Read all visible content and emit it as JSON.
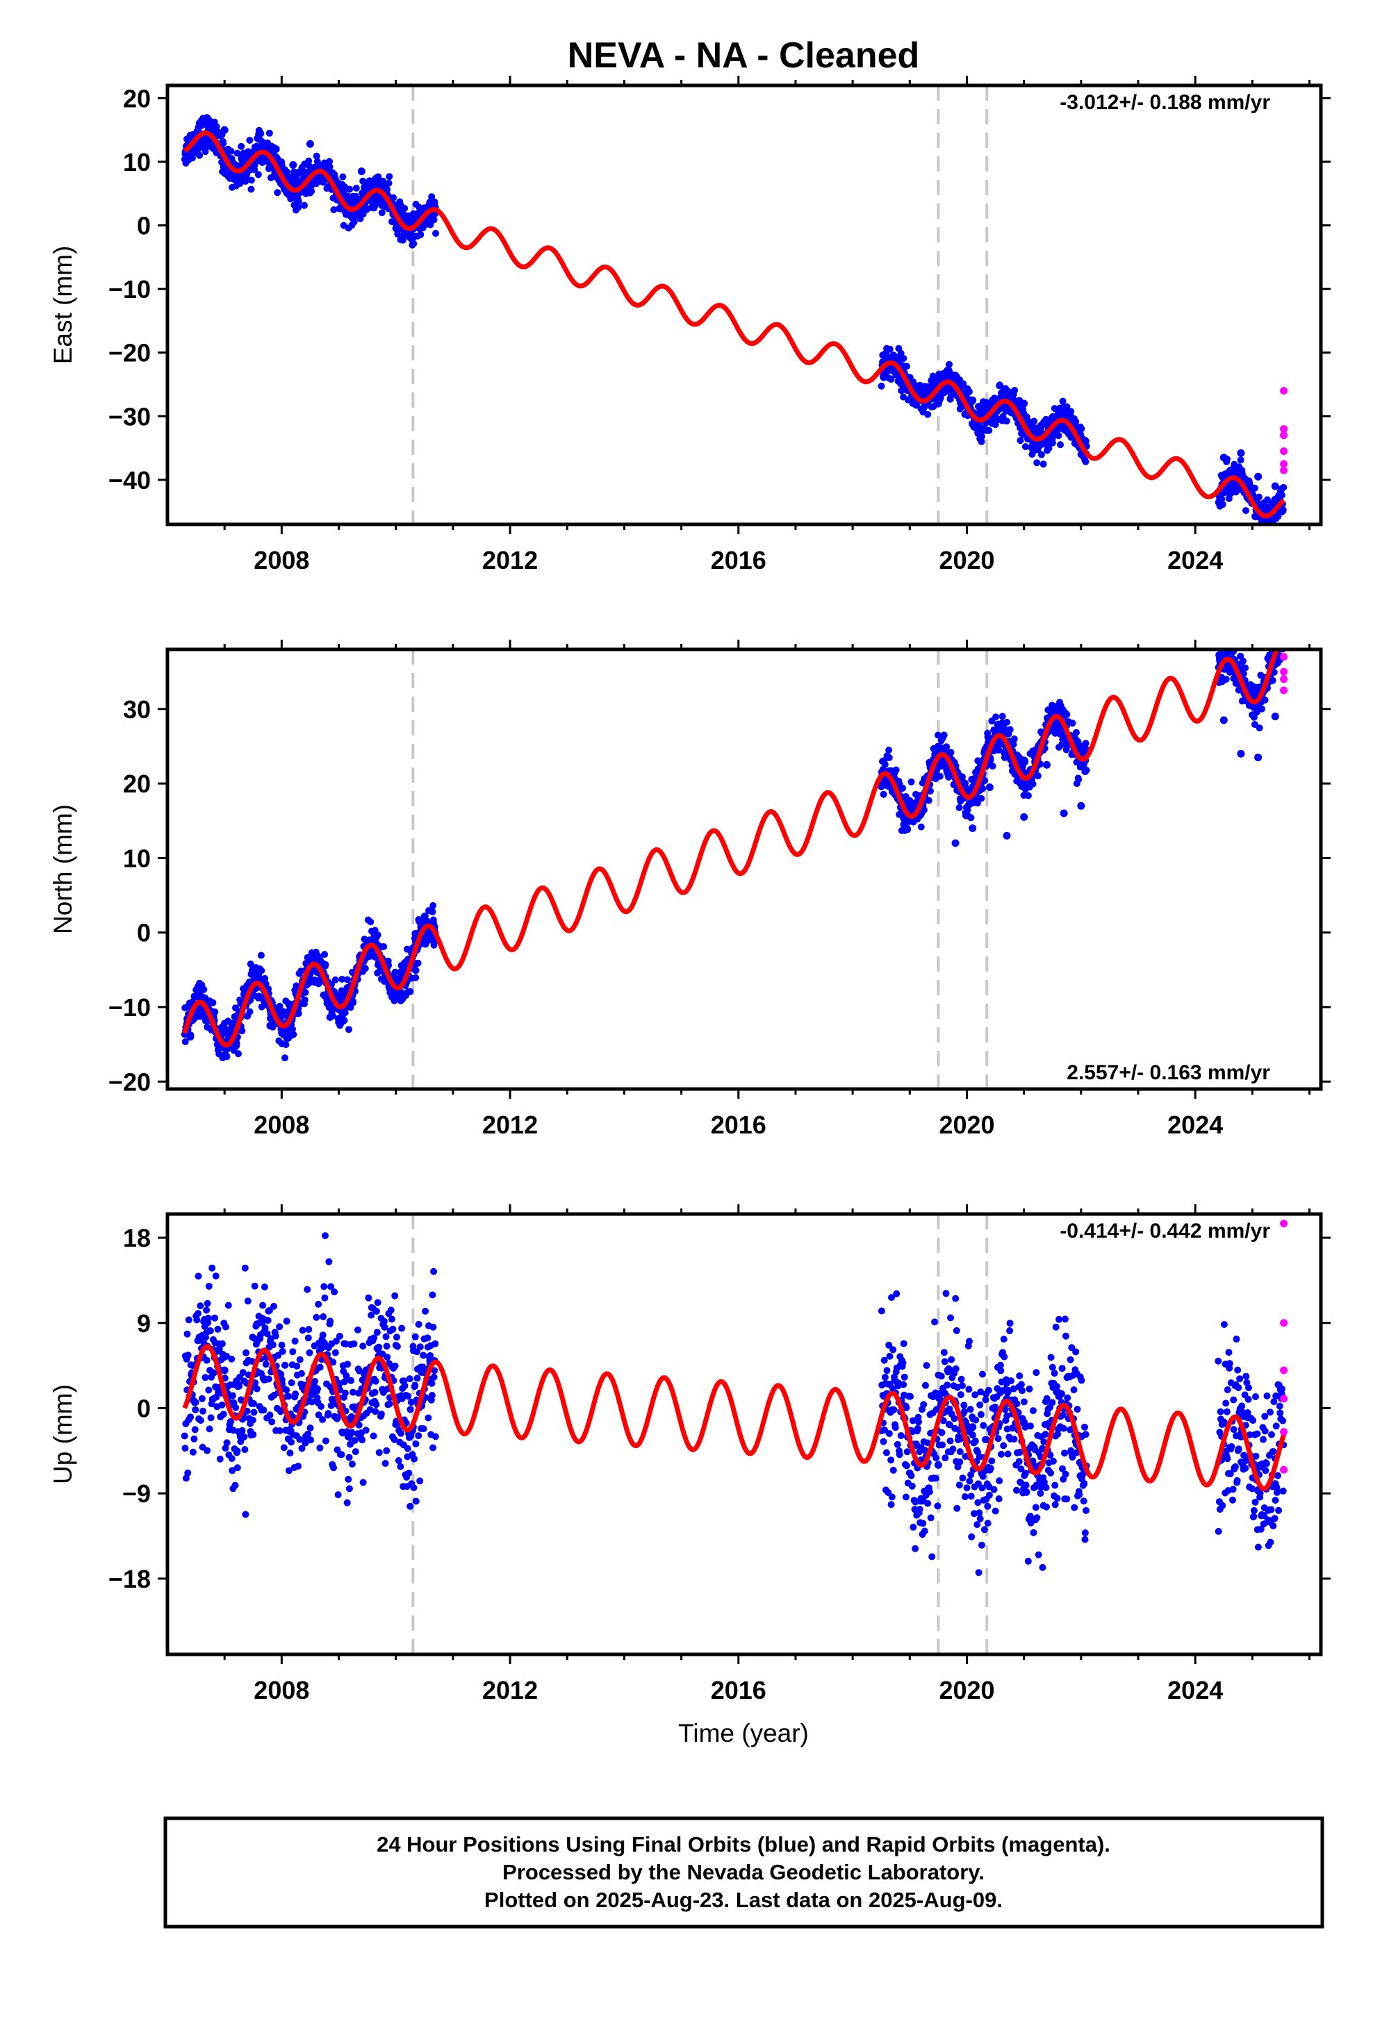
{
  "title": "NEVA  - NA - Cleaned",
  "xlabel": "Time (year)",
  "footer": {
    "lines": [
      "24 Hour Positions Using Final Orbits (blue) and Rapid Orbits (magenta).",
      "Processed by the Nevada Geodetic Laboratory.",
      "Plotted on 2025-Aug-23. Last data on 2025-Aug-09."
    ]
  },
  "colors": {
    "final": "#0000ff",
    "rapid": "#ff00ff",
    "model": "#ff0000",
    "event_line": "#c8c8c8"
  },
  "chart_data": [
    {
      "type": "scatter",
      "component": "east",
      "ylabel": "East (mm)",
      "rate_label": "-3.012+/- 0.188 mm/yr",
      "rate_position": "top-right",
      "xlim": [
        2006.0,
        2026.2
      ],
      "xticks": [
        2008,
        2012,
        2016,
        2020,
        2024
      ],
      "ylim": [
        -47,
        22
      ],
      "yticks": [
        20,
        10,
        0,
        -10,
        -20,
        -30,
        -40
      ],
      "event_lines": [
        2010.3,
        2019.5,
        2020.35
      ],
      "data_segments": [
        [
          2006.3,
          2010.7
        ],
        [
          2018.5,
          2022.1
        ],
        [
          2024.4,
          2025.55
        ]
      ],
      "model": {
        "rate": -3.012,
        "value_at_2006_3": 13.5,
        "annual_amplitude": 2.2,
        "annual_peak_year": 2006.7
      },
      "final_orbit_points": [
        [
          2006.4,
          13.2
        ],
        [
          2006.7,
          16.8
        ],
        [
          2007.0,
          15.0
        ],
        [
          2007.3,
          10.5
        ],
        [
          2007.6,
          13.6
        ],
        [
          2007.9,
          12.0
        ],
        [
          2008.2,
          9.5
        ],
        [
          2008.5,
          12.8
        ],
        [
          2008.8,
          9.6
        ],
        [
          2009.1,
          6.0
        ],
        [
          2009.4,
          8.5
        ],
        [
          2009.7,
          6.5
        ],
        [
          2010.0,
          3.2
        ],
        [
          2010.3,
          0.5
        ],
        [
          2010.6,
          2.8
        ],
        [
          2018.6,
          -21.8
        ],
        [
          2018.9,
          -23.2
        ],
        [
          2019.2,
          -27.5
        ],
        [
          2019.5,
          -28.0
        ],
        [
          2019.8,
          -25.0
        ],
        [
          2020.1,
          -27.5
        ],
        [
          2020.4,
          -30.2
        ],
        [
          2020.7,
          -26.0
        ],
        [
          2021.0,
          -28.0
        ],
        [
          2021.3,
          -31.5
        ],
        [
          2021.6,
          -30.0
        ],
        [
          2021.9,
          -32.0
        ],
        [
          2024.5,
          -36.5
        ],
        [
          2024.8,
          -35.8
        ],
        [
          2025.1,
          -39.5
        ],
        [
          2025.4,
          -41.0
        ]
      ],
      "rapid_orbit_points": [
        [
          2025.55,
          -26.0
        ],
        [
          2025.55,
          -32.0
        ],
        [
          2025.55,
          -33.0
        ],
        [
          2025.55,
          -35.5
        ],
        [
          2025.55,
          -37.5
        ],
        [
          2025.55,
          -38.5
        ]
      ]
    },
    {
      "type": "scatter",
      "component": "north",
      "ylabel": "North (mm)",
      "rate_label": "2.557+/- 0.163 mm/yr",
      "rate_position": "bottom-right",
      "xlim": [
        2006.0,
        2026.2
      ],
      "xticks": [
        2008,
        2012,
        2016,
        2020,
        2024
      ],
      "ylim": [
        -21,
        38
      ],
      "yticks": [
        30,
        20,
        10,
        0,
        -10,
        -20
      ],
      "event_lines": [
        2010.3,
        2019.5,
        2020.35
      ],
      "data_segments": [
        [
          2006.3,
          2010.7
        ],
        [
          2018.5,
          2022.1
        ],
        [
          2024.4,
          2025.55
        ]
      ],
      "model": {
        "rate": 2.557,
        "value_at_2006_3": -13.5,
        "annual_amplitude": 3.5,
        "annual_peak_year": 2006.55
      },
      "final_orbit_points": [
        [
          2006.4,
          -14.0
        ],
        [
          2006.6,
          -9.5
        ],
        [
          2006.9,
          -14.8
        ],
        [
          2007.2,
          -15.2
        ],
        [
          2007.5,
          -7.0
        ],
        [
          2007.8,
          -12.5
        ],
        [
          2008.1,
          -12.0
        ],
        [
          2008.5,
          -4.5
        ],
        [
          2008.8,
          -9.5
        ],
        [
          2009.1,
          -8.5
        ],
        [
          2009.5,
          -2.0
        ],
        [
          2009.8,
          -6.5
        ],
        [
          2010.1,
          -5.5
        ],
        [
          2010.5,
          0.0
        ],
        [
          2018.6,
          20.5
        ],
        [
          2018.9,
          14.5
        ],
        [
          2019.2,
          16.0
        ],
        [
          2019.5,
          23.5
        ],
        [
          2019.8,
          12.0
        ],
        [
          2020.1,
          14.0
        ],
        [
          2020.4,
          19.5
        ],
        [
          2020.7,
          13.0
        ],
        [
          2021.0,
          15.5
        ],
        [
          2021.4,
          22.5
        ],
        [
          2021.7,
          16.0
        ],
        [
          2022.0,
          17.0
        ],
        [
          2024.5,
          28.5
        ],
        [
          2024.8,
          24.0
        ],
        [
          2025.1,
          23.5
        ],
        [
          2025.4,
          29.0
        ]
      ],
      "rapid_orbit_points": [
        [
          2025.55,
          37.0
        ],
        [
          2025.55,
          35.0
        ],
        [
          2025.55,
          34.0
        ],
        [
          2025.55,
          32.5
        ]
      ]
    },
    {
      "type": "scatter",
      "component": "up",
      "ylabel": "Up (mm)",
      "rate_label": "-0.414+/- 0.442 mm/yr",
      "rate_position": "top-right",
      "xlim": [
        2006.0,
        2026.2
      ],
      "xticks": [
        2008,
        2012,
        2016,
        2020,
        2024
      ],
      "ylim": [
        -26,
        20.5
      ],
      "yticks": [
        18,
        9,
        0,
        -9,
        -18
      ],
      "event_lines": [
        2010.3,
        2019.5,
        2020.35
      ],
      "data_segments": [
        [
          2006.3,
          2010.7
        ],
        [
          2018.5,
          2022.1
        ],
        [
          2024.4,
          2025.55
        ]
      ],
      "model": {
        "rate": -0.414,
        "value_at_2006_3": 3.0,
        "annual_amplitude": 3.7,
        "annual_peak_year": 2006.7
      },
      "final_orbit_points": [
        [
          2006.4,
          1.0
        ],
        [
          2006.7,
          6.5
        ],
        [
          2007.0,
          4.0
        ],
        [
          2007.3,
          -1.0
        ],
        [
          2007.7,
          6.0
        ],
        [
          2008.0,
          3.0
        ],
        [
          2008.3,
          -1.5
        ],
        [
          2008.7,
          5.5
        ],
        [
          2009.0,
          2.5
        ],
        [
          2009.3,
          -1.5
        ],
        [
          2009.7,
          5.0
        ],
        [
          2010.0,
          1.0
        ],
        [
          2010.3,
          -2.0
        ],
        [
          2010.6,
          5.0
        ],
        [
          2018.6,
          1.5
        ],
        [
          2018.9,
          -1.0
        ],
        [
          2019.2,
          -5.5
        ],
        [
          2019.5,
          -6.0
        ],
        [
          2019.8,
          0.5
        ],
        [
          2020.1,
          -2.0
        ],
        [
          2020.4,
          -6.5
        ],
        [
          2020.7,
          1.0
        ],
        [
          2021.0,
          -1.5
        ],
        [
          2021.3,
          -6.0
        ],
        [
          2021.7,
          0.0
        ],
        [
          2022.0,
          -3.0
        ],
        [
          2024.5,
          -1.5
        ],
        [
          2024.8,
          -3.0
        ],
        [
          2025.1,
          -7.0
        ],
        [
          2025.4,
          -8.0
        ]
      ],
      "rapid_orbit_points": [
        [
          2025.55,
          19.5
        ],
        [
          2025.55,
          9.0
        ],
        [
          2025.55,
          4.0
        ],
        [
          2025.55,
          1.0
        ],
        [
          2025.55,
          -2.5
        ],
        [
          2025.55,
          -6.5
        ]
      ]
    }
  ]
}
